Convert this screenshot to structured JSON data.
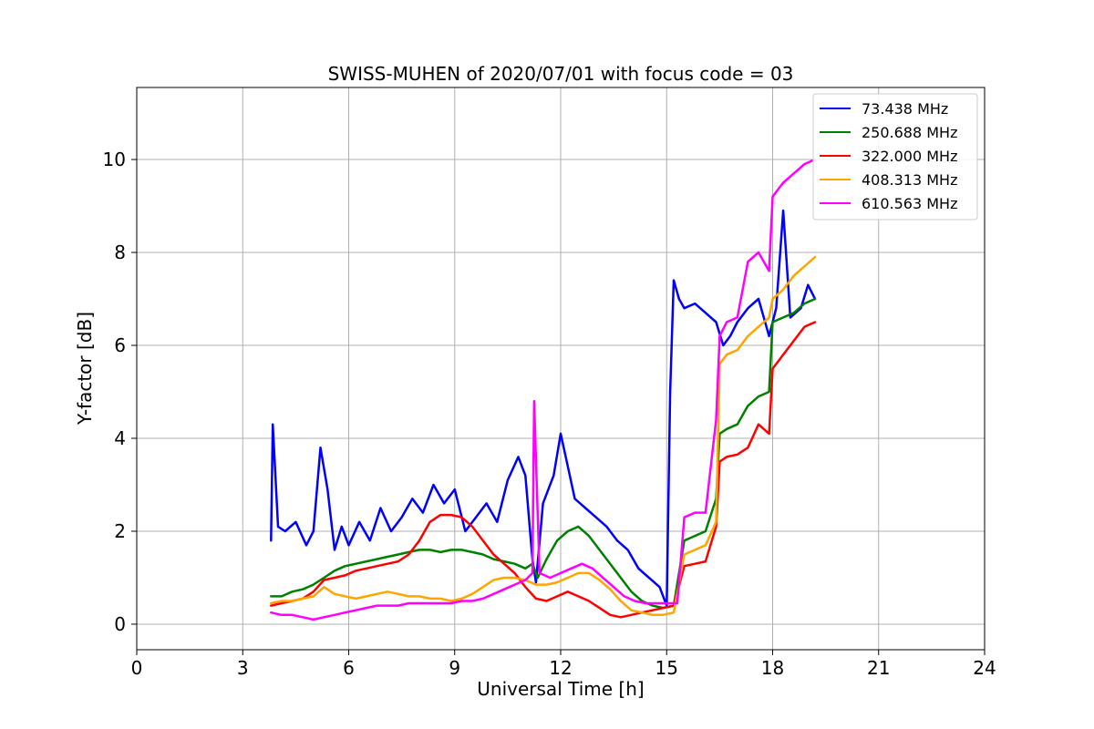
{
  "chart_data": {
    "type": "line",
    "title": "SWISS-MUHEN of 2020/07/01 with focus code = 03",
    "xlabel": "Universal Time [h]",
    "ylabel": "Y-factor [dB]",
    "xlim": [
      0,
      24
    ],
    "ylim": [
      -0.55,
      11.55
    ],
    "xticks": [
      0,
      3,
      6,
      9,
      12,
      15,
      18,
      21,
      24
    ],
    "xtick_labels": [
      "0",
      "3",
      "6",
      "9",
      "12",
      "15",
      "18",
      "21",
      "24"
    ],
    "yticks": [
      0,
      2,
      4,
      6,
      8,
      10
    ],
    "ytick_labels": [
      "0",
      "2",
      "4",
      "6",
      "8",
      "10"
    ],
    "grid": true,
    "legend_position": "top-right",
    "series": [
      {
        "name": " 73.438 MHz",
        "color": "#0000ff",
        "x": [
          3.8,
          3.85,
          4.0,
          4.2,
          4.5,
          4.8,
          5.0,
          5.2,
          5.4,
          5.6,
          5.8,
          6.0,
          6.3,
          6.6,
          6.9,
          7.2,
          7.5,
          7.8,
          8.1,
          8.4,
          8.7,
          9.0,
          9.3,
          9.6,
          9.9,
          10.2,
          10.5,
          10.8,
          11.0,
          11.2,
          11.3,
          11.5,
          11.8,
          12.0,
          12.2,
          12.4,
          12.7,
          13.0,
          13.3,
          13.6,
          13.9,
          14.2,
          14.5,
          14.8,
          15.0,
          15.1,
          15.2,
          15.35,
          15.5,
          15.8,
          16.1,
          16.4,
          16.6,
          16.8,
          17.0,
          17.3,
          17.6,
          17.9,
          18.1,
          18.3,
          18.5,
          18.8,
          19.0,
          19.2
        ],
        "y": [
          1.8,
          4.3,
          2.1,
          2.0,
          2.2,
          1.7,
          2.0,
          3.8,
          2.9,
          1.6,
          2.1,
          1.7,
          2.2,
          1.8,
          2.5,
          2.0,
          2.3,
          2.7,
          2.4,
          3.0,
          2.6,
          2.9,
          2.0,
          2.3,
          2.6,
          2.2,
          3.1,
          3.6,
          3.2,
          1.4,
          0.9,
          2.6,
          3.2,
          4.1,
          3.4,
          2.7,
          2.5,
          2.3,
          2.1,
          1.8,
          1.6,
          1.2,
          1.0,
          0.8,
          0.4,
          5.0,
          7.4,
          7.0,
          6.8,
          6.9,
          6.7,
          6.5,
          6.0,
          6.2,
          6.5,
          6.8,
          7.0,
          6.2,
          6.8,
          8.9,
          6.6,
          6.8,
          7.3,
          7.0
        ]
      },
      {
        "name": " 250.688 MHz",
        "color": "#008000",
        "x": [
          3.8,
          4.1,
          4.4,
          4.7,
          5.0,
          5.3,
          5.6,
          5.9,
          6.2,
          6.5,
          6.8,
          7.1,
          7.4,
          7.7,
          8.0,
          8.3,
          8.6,
          8.9,
          9.2,
          9.5,
          9.8,
          10.1,
          10.4,
          10.7,
          11.0,
          11.2,
          11.35,
          11.6,
          11.9,
          12.2,
          12.5,
          12.8,
          13.1,
          13.4,
          13.7,
          14.0,
          14.3,
          14.6,
          14.9,
          15.2,
          15.5,
          15.8,
          16.1,
          16.4,
          16.5,
          16.7,
          17.0,
          17.3,
          17.6,
          17.9,
          18.0,
          18.3,
          18.6,
          18.9,
          19.2
        ],
        "y": [
          0.6,
          0.6,
          0.7,
          0.75,
          0.85,
          1.0,
          1.15,
          1.25,
          1.3,
          1.35,
          1.4,
          1.45,
          1.5,
          1.55,
          1.6,
          1.6,
          1.55,
          1.6,
          1.6,
          1.55,
          1.5,
          1.4,
          1.35,
          1.3,
          1.2,
          1.3,
          1.0,
          1.4,
          1.8,
          2.0,
          2.1,
          1.9,
          1.6,
          1.3,
          1.0,
          0.7,
          0.5,
          0.4,
          0.35,
          0.4,
          1.8,
          1.9,
          2.0,
          2.7,
          4.1,
          4.2,
          4.3,
          4.7,
          4.9,
          5.0,
          6.5,
          6.6,
          6.7,
          6.9,
          7.0
        ]
      },
      {
        "name": " 322.000 MHz",
        "color": "#ff0000",
        "x": [
          3.8,
          4.1,
          4.4,
          4.7,
          5.0,
          5.3,
          5.6,
          5.9,
          6.2,
          6.5,
          6.8,
          7.1,
          7.4,
          7.7,
          8.0,
          8.3,
          8.6,
          8.9,
          9.2,
          9.5,
          9.8,
          10.1,
          10.4,
          10.7,
          11.0,
          11.3,
          11.6,
          11.9,
          12.2,
          12.5,
          12.8,
          13.1,
          13.4,
          13.7,
          14.0,
          14.3,
          14.6,
          14.9,
          15.2,
          15.5,
          15.8,
          16.1,
          16.4,
          16.5,
          16.7,
          17.0,
          17.3,
          17.6,
          17.9,
          18.0,
          18.3,
          18.6,
          18.9,
          19.2
        ],
        "y": [
          0.4,
          0.45,
          0.5,
          0.55,
          0.7,
          0.95,
          1.0,
          1.05,
          1.15,
          1.2,
          1.25,
          1.3,
          1.35,
          1.5,
          1.8,
          2.2,
          2.35,
          2.35,
          2.3,
          2.1,
          1.8,
          1.5,
          1.3,
          1.1,
          0.8,
          0.55,
          0.5,
          0.6,
          0.7,
          0.6,
          0.5,
          0.35,
          0.2,
          0.15,
          0.2,
          0.25,
          0.3,
          0.35,
          0.4,
          1.25,
          1.3,
          1.35,
          2.1,
          3.5,
          3.6,
          3.65,
          3.8,
          4.3,
          4.1,
          5.5,
          5.8,
          6.1,
          6.4,
          6.5
        ]
      },
      {
        "name": " 408.313 MHz",
        "color": "#ffa500",
        "x": [
          3.8,
          4.1,
          4.4,
          4.7,
          5.0,
          5.3,
          5.6,
          5.9,
          6.2,
          6.5,
          6.8,
          7.1,
          7.4,
          7.7,
          8.0,
          8.3,
          8.6,
          8.9,
          9.2,
          9.5,
          9.8,
          10.1,
          10.4,
          10.7,
          11.0,
          11.3,
          11.6,
          11.9,
          12.2,
          12.5,
          12.8,
          13.1,
          13.4,
          13.7,
          14.0,
          14.3,
          14.6,
          14.9,
          15.2,
          15.5,
          15.8,
          16.1,
          16.4,
          16.5,
          16.7,
          17.0,
          17.3,
          17.6,
          17.9,
          18.0,
          18.3,
          18.6,
          18.9,
          19.2
        ],
        "y": [
          0.45,
          0.5,
          0.5,
          0.55,
          0.6,
          0.8,
          0.65,
          0.6,
          0.55,
          0.6,
          0.65,
          0.7,
          0.65,
          0.6,
          0.6,
          0.55,
          0.55,
          0.5,
          0.55,
          0.65,
          0.8,
          0.95,
          1.0,
          1.0,
          0.95,
          0.85,
          0.85,
          0.9,
          1.0,
          1.1,
          1.1,
          0.95,
          0.75,
          0.5,
          0.3,
          0.25,
          0.2,
          0.2,
          0.25,
          1.5,
          1.6,
          1.7,
          2.2,
          5.6,
          5.8,
          5.9,
          6.2,
          6.4,
          6.6,
          7.0,
          7.2,
          7.5,
          7.7,
          7.9
        ]
      },
      {
        "name": " 610.563 MHz",
        "color": "#ff00ff",
        "x": [
          3.8,
          4.1,
          4.4,
          4.7,
          5.0,
          5.3,
          5.6,
          5.9,
          6.2,
          6.5,
          6.8,
          7.1,
          7.4,
          7.7,
          8.0,
          8.3,
          8.6,
          8.9,
          9.2,
          9.5,
          9.8,
          10.1,
          10.4,
          10.7,
          11.0,
          11.2,
          11.25,
          11.4,
          11.7,
          12.0,
          12.3,
          12.6,
          12.9,
          13.2,
          13.5,
          13.8,
          14.1,
          14.4,
          14.7,
          15.0,
          15.3,
          15.5,
          15.8,
          16.1,
          16.4,
          16.5,
          16.7,
          17.0,
          17.3,
          17.6,
          17.9,
          18.0,
          18.3,
          18.6,
          18.9,
          19.2
        ],
        "y": [
          0.25,
          0.2,
          0.2,
          0.15,
          0.1,
          0.15,
          0.2,
          0.25,
          0.3,
          0.35,
          0.4,
          0.4,
          0.4,
          0.45,
          0.45,
          0.45,
          0.45,
          0.45,
          0.5,
          0.5,
          0.55,
          0.65,
          0.75,
          0.85,
          0.95,
          1.1,
          4.8,
          1.1,
          1.0,
          1.1,
          1.2,
          1.3,
          1.2,
          1.0,
          0.8,
          0.6,
          0.5,
          0.45,
          0.45,
          0.45,
          0.45,
          2.3,
          2.4,
          2.4,
          4.4,
          6.2,
          6.5,
          6.6,
          7.8,
          8.0,
          7.6,
          9.2,
          9.5,
          9.7,
          9.9,
          10.0
        ]
      }
    ]
  }
}
